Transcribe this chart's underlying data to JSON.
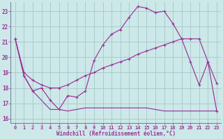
{
  "xlabel": "Windchill (Refroidissement éolien,°C)",
  "bg_color": "#cce8e8",
  "line_color": "#993399",
  "grid_color": "#aacccc",
  "xlim": [
    -0.5,
    23.5
  ],
  "ylim": [
    15.7,
    23.6
  ],
  "xticks": [
    0,
    1,
    2,
    3,
    4,
    5,
    6,
    7,
    8,
    9,
    10,
    11,
    12,
    13,
    14,
    15,
    16,
    17,
    18,
    19,
    20,
    21,
    22,
    23
  ],
  "yticks": [
    16,
    17,
    18,
    19,
    20,
    21,
    22,
    23
  ],
  "line1_x": [
    0,
    1,
    2,
    3,
    4,
    5,
    6,
    7,
    8,
    9,
    10,
    11,
    12,
    13,
    14,
    15,
    16,
    17,
    18,
    19,
    20,
    21,
    22,
    23
  ],
  "line1_y": [
    21.2,
    18.8,
    17.8,
    18.0,
    17.2,
    16.6,
    17.5,
    17.4,
    17.8,
    19.8,
    20.8,
    21.5,
    21.8,
    22.6,
    23.3,
    23.2,
    22.9,
    23.0,
    22.2,
    21.2,
    19.7,
    18.2,
    19.7,
    16.5
  ],
  "line2_x": [
    0,
    1,
    2,
    3,
    4,
    5,
    6,
    7,
    8,
    9,
    10,
    11,
    12,
    13,
    14,
    15,
    16,
    17,
    18,
    19,
    20,
    21,
    22,
    23
  ],
  "line2_y": [
    21.2,
    19.0,
    18.5,
    18.2,
    18.0,
    18.0,
    18.2,
    18.5,
    18.8,
    19.0,
    19.3,
    19.5,
    19.7,
    19.9,
    20.2,
    20.4,
    20.6,
    20.8,
    21.0,
    21.2,
    21.2,
    21.2,
    19.7,
    18.3
  ],
  "line3_x": [
    0,
    1,
    2,
    3,
    4,
    5,
    6,
    7,
    8,
    9,
    10,
    11,
    12,
    13,
    14,
    15,
    16,
    17,
    18,
    19,
    20,
    21,
    22,
    23
  ],
  "line3_y": [
    21.2,
    18.8,
    17.8,
    17.2,
    16.6,
    16.6,
    16.5,
    16.6,
    16.7,
    16.7,
    16.7,
    16.7,
    16.7,
    16.7,
    16.7,
    16.7,
    16.6,
    16.5,
    16.5,
    16.5,
    16.5,
    16.5,
    16.5,
    16.5
  ]
}
